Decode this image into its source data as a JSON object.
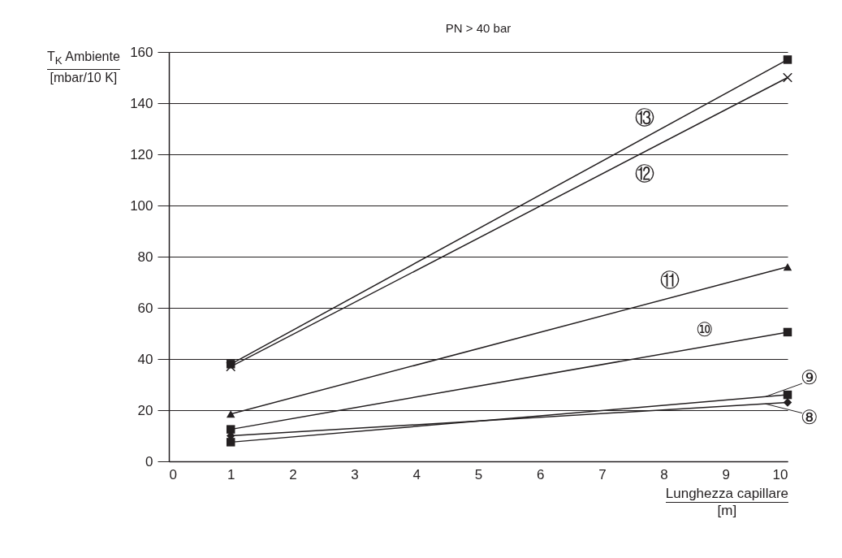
{
  "chart_data": {
    "type": "line",
    "title": "PN > 40 bar",
    "xlabel": "Lunghezza capillare\n[m]",
    "ylabel": "T$_{K}$ Ambiente\n[mbar/10 K]",
    "x": [
      1,
      10
    ],
    "series": [
      {
        "name": "⑬",
        "color": "#231f20",
        "marker": "square",
        "values": [
          38,
          157
        ]
      },
      {
        "name": "⑫",
        "color": "#231f20",
        "marker": "cross",
        "values": [
          37,
          150
        ]
      },
      {
        "name": "⑪",
        "color": "#231f20",
        "marker": "triangle",
        "values": [
          18.5,
          76
        ]
      },
      {
        "name": "⑩",
        "color": "#231f20",
        "marker": "square",
        "values": [
          12.5,
          50.5
        ]
      },
      {
        "name": "⑨",
        "color": "#231f20",
        "marker": "square",
        "values": [
          7.5,
          26
        ]
      },
      {
        "name": "⑧",
        "color": "#231f20",
        "marker": "diamond",
        "values": [
          10,
          23
        ]
      }
    ],
    "xlim": [
      0,
      10
    ],
    "xticks": [
      0,
      1,
      2,
      3,
      4,
      5,
      6,
      7,
      8,
      9,
      10
    ],
    "ylim": [
      0,
      160
    ],
    "yticks": [
      0,
      20,
      40,
      60,
      80,
      100,
      120,
      140,
      160
    ],
    "grid": "y",
    "line_style": "solid",
    "legend": "right"
  }
}
